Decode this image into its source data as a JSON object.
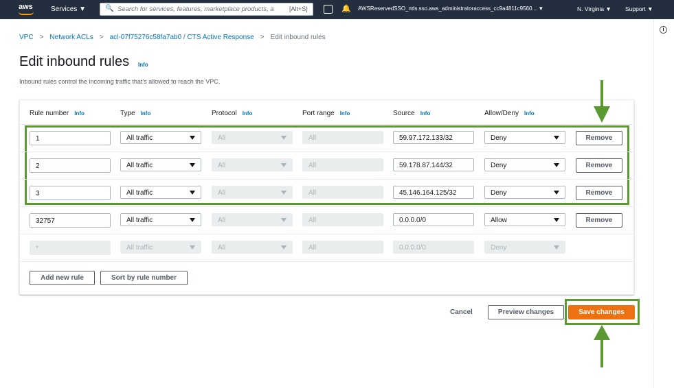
{
  "nav": {
    "logo": "aws",
    "services": "Services",
    "search_placeholder": "Search for services, features, marketplace products, a",
    "search_shortcut": "[Alt+S]",
    "account": "AWSReservedSSO_ntts.sso.aws_administratoraccess_cc9a4811c9560...",
    "region": "N. Virginia",
    "support": "Support"
  },
  "breadcrumb": [
    "VPC",
    "Network ACLs",
    "acl-07f75276c58fa7ab0 / CTS Active Response",
    "Edit inbound rules"
  ],
  "header": {
    "title": "Edit inbound rules",
    "info": "Info",
    "description": "Inbound rules control the incoming traffic that's allowed to reach the VPC."
  },
  "table": {
    "columns": [
      {
        "label": "Rule number",
        "info": "Info"
      },
      {
        "label": "Type",
        "info": "Info"
      },
      {
        "label": "Protocol",
        "info": "Info"
      },
      {
        "label": "Port range",
        "info": "Info"
      },
      {
        "label": "Source",
        "info": "Info"
      },
      {
        "label": "Allow/Deny",
        "info": "Info"
      }
    ],
    "rows": [
      {
        "rule": "1",
        "type": "All traffic",
        "protocol": "All",
        "port": "All",
        "source": "59.97.172.133/32",
        "action": "Deny",
        "remove": "Remove"
      },
      {
        "rule": "2",
        "type": "All traffic",
        "protocol": "All",
        "port": "All",
        "source": "59.178.87.144/32",
        "action": "Deny",
        "remove": "Remove"
      },
      {
        "rule": "3",
        "type": "All traffic",
        "protocol": "All",
        "port": "All",
        "source": "45.146.164.125/32",
        "action": "Deny",
        "remove": "Remove"
      },
      {
        "rule": "32757",
        "type": "All traffic",
        "protocol": "All",
        "port": "All",
        "source": "0.0.0.0/0",
        "action": "Allow",
        "remove": "Remove"
      },
      {
        "rule": "*",
        "type": "All traffic",
        "protocol": "All",
        "port": "All",
        "source": "0.0.0.0/0",
        "action": "Deny"
      }
    ]
  },
  "buttons": {
    "add": "Add new rule",
    "sort": "Sort by rule number",
    "cancel": "Cancel",
    "preview": "Preview changes",
    "save": "Save changes"
  }
}
